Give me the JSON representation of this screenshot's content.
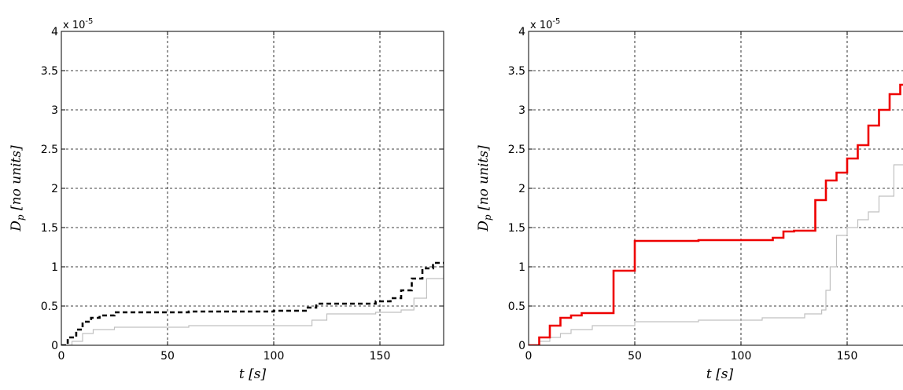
{
  "chart_data": [
    {
      "type": "line",
      "xlabel": "t  [s]",
      "ylabel": "D_p  [no units]",
      "y_multiplier": "x 10^-5",
      "xlim": [
        0,
        180
      ],
      "ylim": [
        0,
        4
      ],
      "xticks": [
        0,
        50,
        100,
        150
      ],
      "yticks": [
        0,
        0.5,
        1,
        1.5,
        2,
        2.5,
        3,
        3.5,
        4
      ],
      "grid": true,
      "series": [
        {
          "color": "#c0c0c0",
          "style": "solid",
          "step": true,
          "x": [
            0,
            5,
            10,
            15,
            25,
            60,
            118,
            125,
            148,
            160,
            166,
            172,
            180
          ],
          "y": [
            0,
            0.05,
            0.15,
            0.2,
            0.23,
            0.25,
            0.32,
            0.4,
            0.42,
            0.45,
            0.6,
            0.85,
            0.9
          ]
        },
        {
          "color": "#000000",
          "style": "dashed",
          "step": true,
          "x": [
            0,
            3,
            7,
            10,
            14,
            18,
            25,
            60,
            100,
            116,
            120,
            148,
            155,
            160,
            165,
            170,
            175,
            180
          ],
          "y": [
            0,
            0.1,
            0.2,
            0.3,
            0.35,
            0.38,
            0.42,
            0.43,
            0.44,
            0.48,
            0.53,
            0.56,
            0.6,
            0.7,
            0.85,
            0.98,
            1.05,
            1.05
          ]
        }
      ]
    },
    {
      "type": "line",
      "xlabel": "t  [s]",
      "ylabel": "D_p  [no units]",
      "y_multiplier": "x 10^-5",
      "xlim": [
        0,
        180
      ],
      "ylim": [
        0,
        4
      ],
      "xticks": [
        0,
        50,
        100,
        150
      ],
      "yticks": [
        0,
        0.5,
        1,
        1.5,
        2,
        2.5,
        3,
        3.5,
        4
      ],
      "grid": true,
      "series": [
        {
          "color": "#c0c0c0",
          "style": "solid",
          "step": true,
          "x": [
            0,
            5,
            10,
            15,
            20,
            30,
            50,
            80,
            110,
            130,
            138,
            140,
            142,
            145,
            150,
            155,
            160,
            165,
            172,
            180
          ],
          "y": [
            0,
            0.05,
            0.1,
            0.15,
            0.2,
            0.25,
            0.3,
            0.32,
            0.35,
            0.4,
            0.45,
            0.7,
            1.0,
            1.4,
            1.5,
            1.6,
            1.7,
            1.9,
            2.3,
            2.3
          ]
        },
        {
          "color": "#ee0000",
          "style": "solid",
          "step": true,
          "x": [
            0,
            5,
            10,
            15,
            20,
            25,
            40,
            50,
            80,
            115,
            120,
            125,
            135,
            140,
            145,
            150,
            155,
            160,
            165,
            170,
            175,
            180
          ],
          "y": [
            0,
            0.1,
            0.25,
            0.35,
            0.38,
            0.41,
            0.95,
            1.33,
            1.34,
            1.37,
            1.45,
            1.46,
            1.85,
            2.1,
            2.2,
            2.38,
            2.55,
            2.8,
            3.0,
            3.2,
            3.32,
            3.35
          ]
        }
      ]
    }
  ]
}
